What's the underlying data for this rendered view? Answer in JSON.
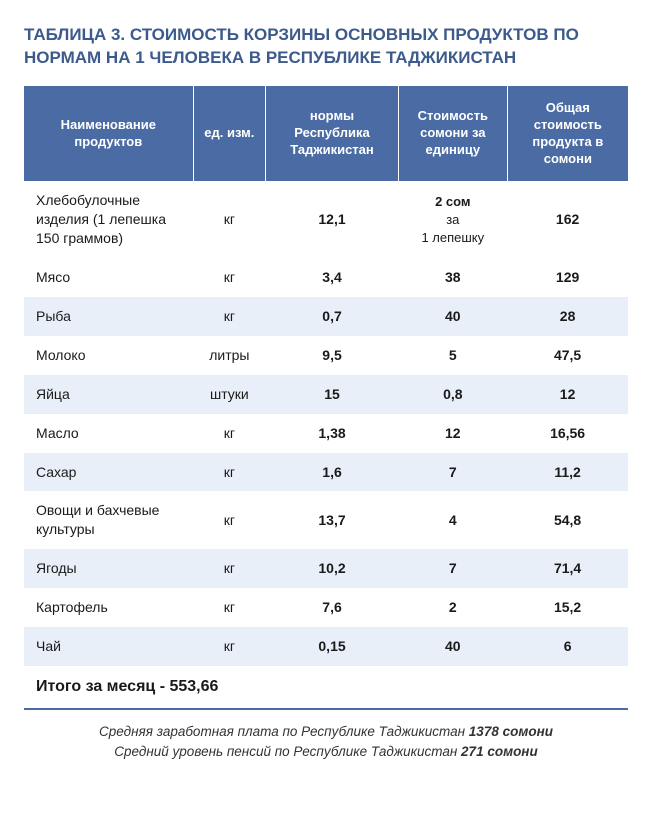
{
  "title": "ТАБЛИЦА 3. СТОИМОСТЬ КОРЗИНЫ ОСНОВНЫХ ПРОДУКТОВ ПО НОРМАМ НА 1 ЧЕЛОВЕКА В РЕСПУБЛИКЕ ТАДЖИКИСТАН",
  "columns": [
    "Наименование продуктов",
    "ед. изм.",
    "нормы Республика Таджикистан",
    "Стоимость сомони за единицу",
    "Общая стоимость продукта в сомони"
  ],
  "rows": [
    {
      "name": "Хлебобулочные изделия (1 лепешка 150 граммов)",
      "unit": "кг",
      "norm": "12,1",
      "price_main": "2 сом",
      "price_sub1": "за",
      "price_sub2": "1 лепешку",
      "total": "162",
      "alt": false,
      "multiline_price": true
    },
    {
      "name": "Мясо",
      "unit": "кг",
      "norm": "3,4",
      "price": "38",
      "total": "129",
      "alt": false
    },
    {
      "name": "Рыба",
      "unit": "кг",
      "norm": "0,7",
      "price": "40",
      "total": "28",
      "alt": true
    },
    {
      "name": "Молоко",
      "unit": "литры",
      "norm": "9,5",
      "price": "5",
      "total": "47,5",
      "alt": false
    },
    {
      "name": "Яйца",
      "unit": "штуки",
      "norm": "15",
      "price": "0,8",
      "total": "12",
      "alt": true
    },
    {
      "name": "Масло",
      "unit": "кг",
      "norm": "1,38",
      "price": "12",
      "total": "16,56",
      "alt": false
    },
    {
      "name": "Сахар",
      "unit": "кг",
      "norm": "1,6",
      "price": "7",
      "total": "11,2",
      "alt": true
    },
    {
      "name": "Овощи и бахчевые культуры",
      "unit": "кг",
      "norm": "13,7",
      "price": "4",
      "total": "54,8",
      "alt": false
    },
    {
      "name": "Ягоды",
      "unit": "кг",
      "norm": "10,2",
      "price": "7",
      "total": "71,4",
      "alt": true
    },
    {
      "name": "Картофель",
      "unit": "кг",
      "norm": "7,6",
      "price": "2",
      "total": "15,2",
      "alt": false
    },
    {
      "name": "Чай",
      "unit": "кг",
      "norm": "0,15",
      "price": "40",
      "total": "6",
      "alt": true
    }
  ],
  "total_label": "Итого за месяц - 553,66",
  "footer": {
    "line1_a": "Средняя заработная плата по Республике Таджикистан ",
    "line1_b": "1378 сомони",
    "line2_a": "Средний уровень пенсий по Республике Таджикистан ",
    "line2_b": "271 сомони"
  },
  "style": {
    "header_bg": "#4a6ba3",
    "header_fg": "#ffffff",
    "alt_row_bg": "#e8eff8",
    "title_color": "#3d5a8c",
    "border_bottom": "#4a6ba3"
  }
}
